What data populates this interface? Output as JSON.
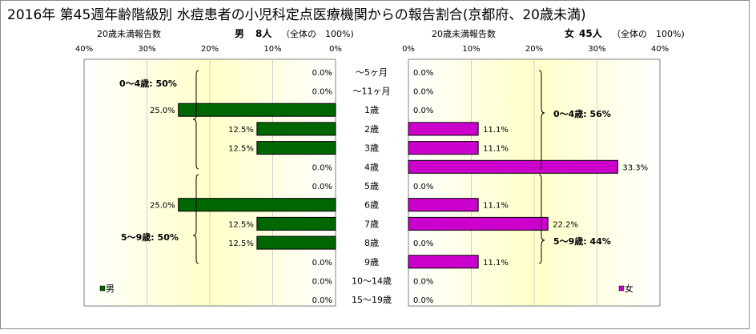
{
  "title": "2016年 第45週年齢階級別 水痘患者の小児科定点医療機関からの報告割合(京都府、20歳未満)",
  "left_header": {
    "caption": "20歳未満報告数",
    "sex": "男",
    "count": "8人",
    "share": "（全体の　100%)"
  },
  "right_header": {
    "caption": "20歳未満報告数",
    "sex": "女",
    "count": "45人",
    "share": "（全体の　100%)"
  },
  "legend": {
    "male": "男",
    "female": "女"
  },
  "colors": {
    "male": "#006600",
    "female": "#cc00cc",
    "plot_bg_edge": "#ffffff",
    "plot_bg_center": "#ffffc8"
  },
  "chart_data": [
    {
      "type": "bar",
      "orientation": "horizontal",
      "direction": "right-to-left",
      "series": [
        {
          "name": "男",
          "values": [
            0.0,
            0.0,
            25.0,
            12.5,
            12.5,
            0.0,
            0.0,
            25.0,
            12.5,
            12.5,
            0.0,
            0.0,
            0.0
          ]
        }
      ],
      "categories": [
        "～5ヶ月",
        "～11ヶ月",
        "1歳",
        "2歳",
        "3歳",
        "4歳",
        "5歳",
        "6歳",
        "7歳",
        "8歳",
        "9歳",
        "10～14歳",
        "15～19歳"
      ],
      "data_labels": [
        "0.0%",
        "0.0%",
        "25.0%",
        "12.5%",
        "12.5%",
        "0.0%",
        "0.0%",
        "25.0%",
        "12.5%",
        "12.5%",
        "0.0%",
        "0.0%",
        "0.0%"
      ],
      "xlim": [
        0,
        40
      ],
      "ticks": [
        "40%",
        "30%",
        "20%",
        "10%",
        "0%"
      ],
      "annotations": [
        "0～4歳: 50%",
        "5～9歳: 50%"
      ],
      "legend": "bottom-left"
    },
    {
      "type": "bar",
      "orientation": "horizontal",
      "direction": "left-to-right",
      "series": [
        {
          "name": "女",
          "values": [
            0.0,
            0.0,
            0.0,
            11.1,
            11.1,
            33.3,
            0.0,
            11.1,
            22.2,
            0.0,
            11.1,
            0.0,
            0.0
          ]
        }
      ],
      "categories": [
        "～5ヶ月",
        "～11ヶ月",
        "1歳",
        "2歳",
        "3歳",
        "4歳",
        "5歳",
        "6歳",
        "7歳",
        "8歳",
        "9歳",
        "10～14歳",
        "15～19歳"
      ],
      "data_labels": [
        "0.0%",
        "0.0%",
        "0.0%",
        "11.1%",
        "11.1%",
        "33.3%",
        "0.0%",
        "11.1%",
        "22.2%",
        "0.0%",
        "11.1%",
        "0.0%",
        "0.0%"
      ],
      "xlim": [
        0,
        40
      ],
      "ticks": [
        "0%",
        "10%",
        "20%",
        "30%",
        "40%"
      ],
      "annotations": [
        "0～4歳: 56%",
        "5～9歳: 44%"
      ],
      "legend": "bottom-right"
    }
  ]
}
